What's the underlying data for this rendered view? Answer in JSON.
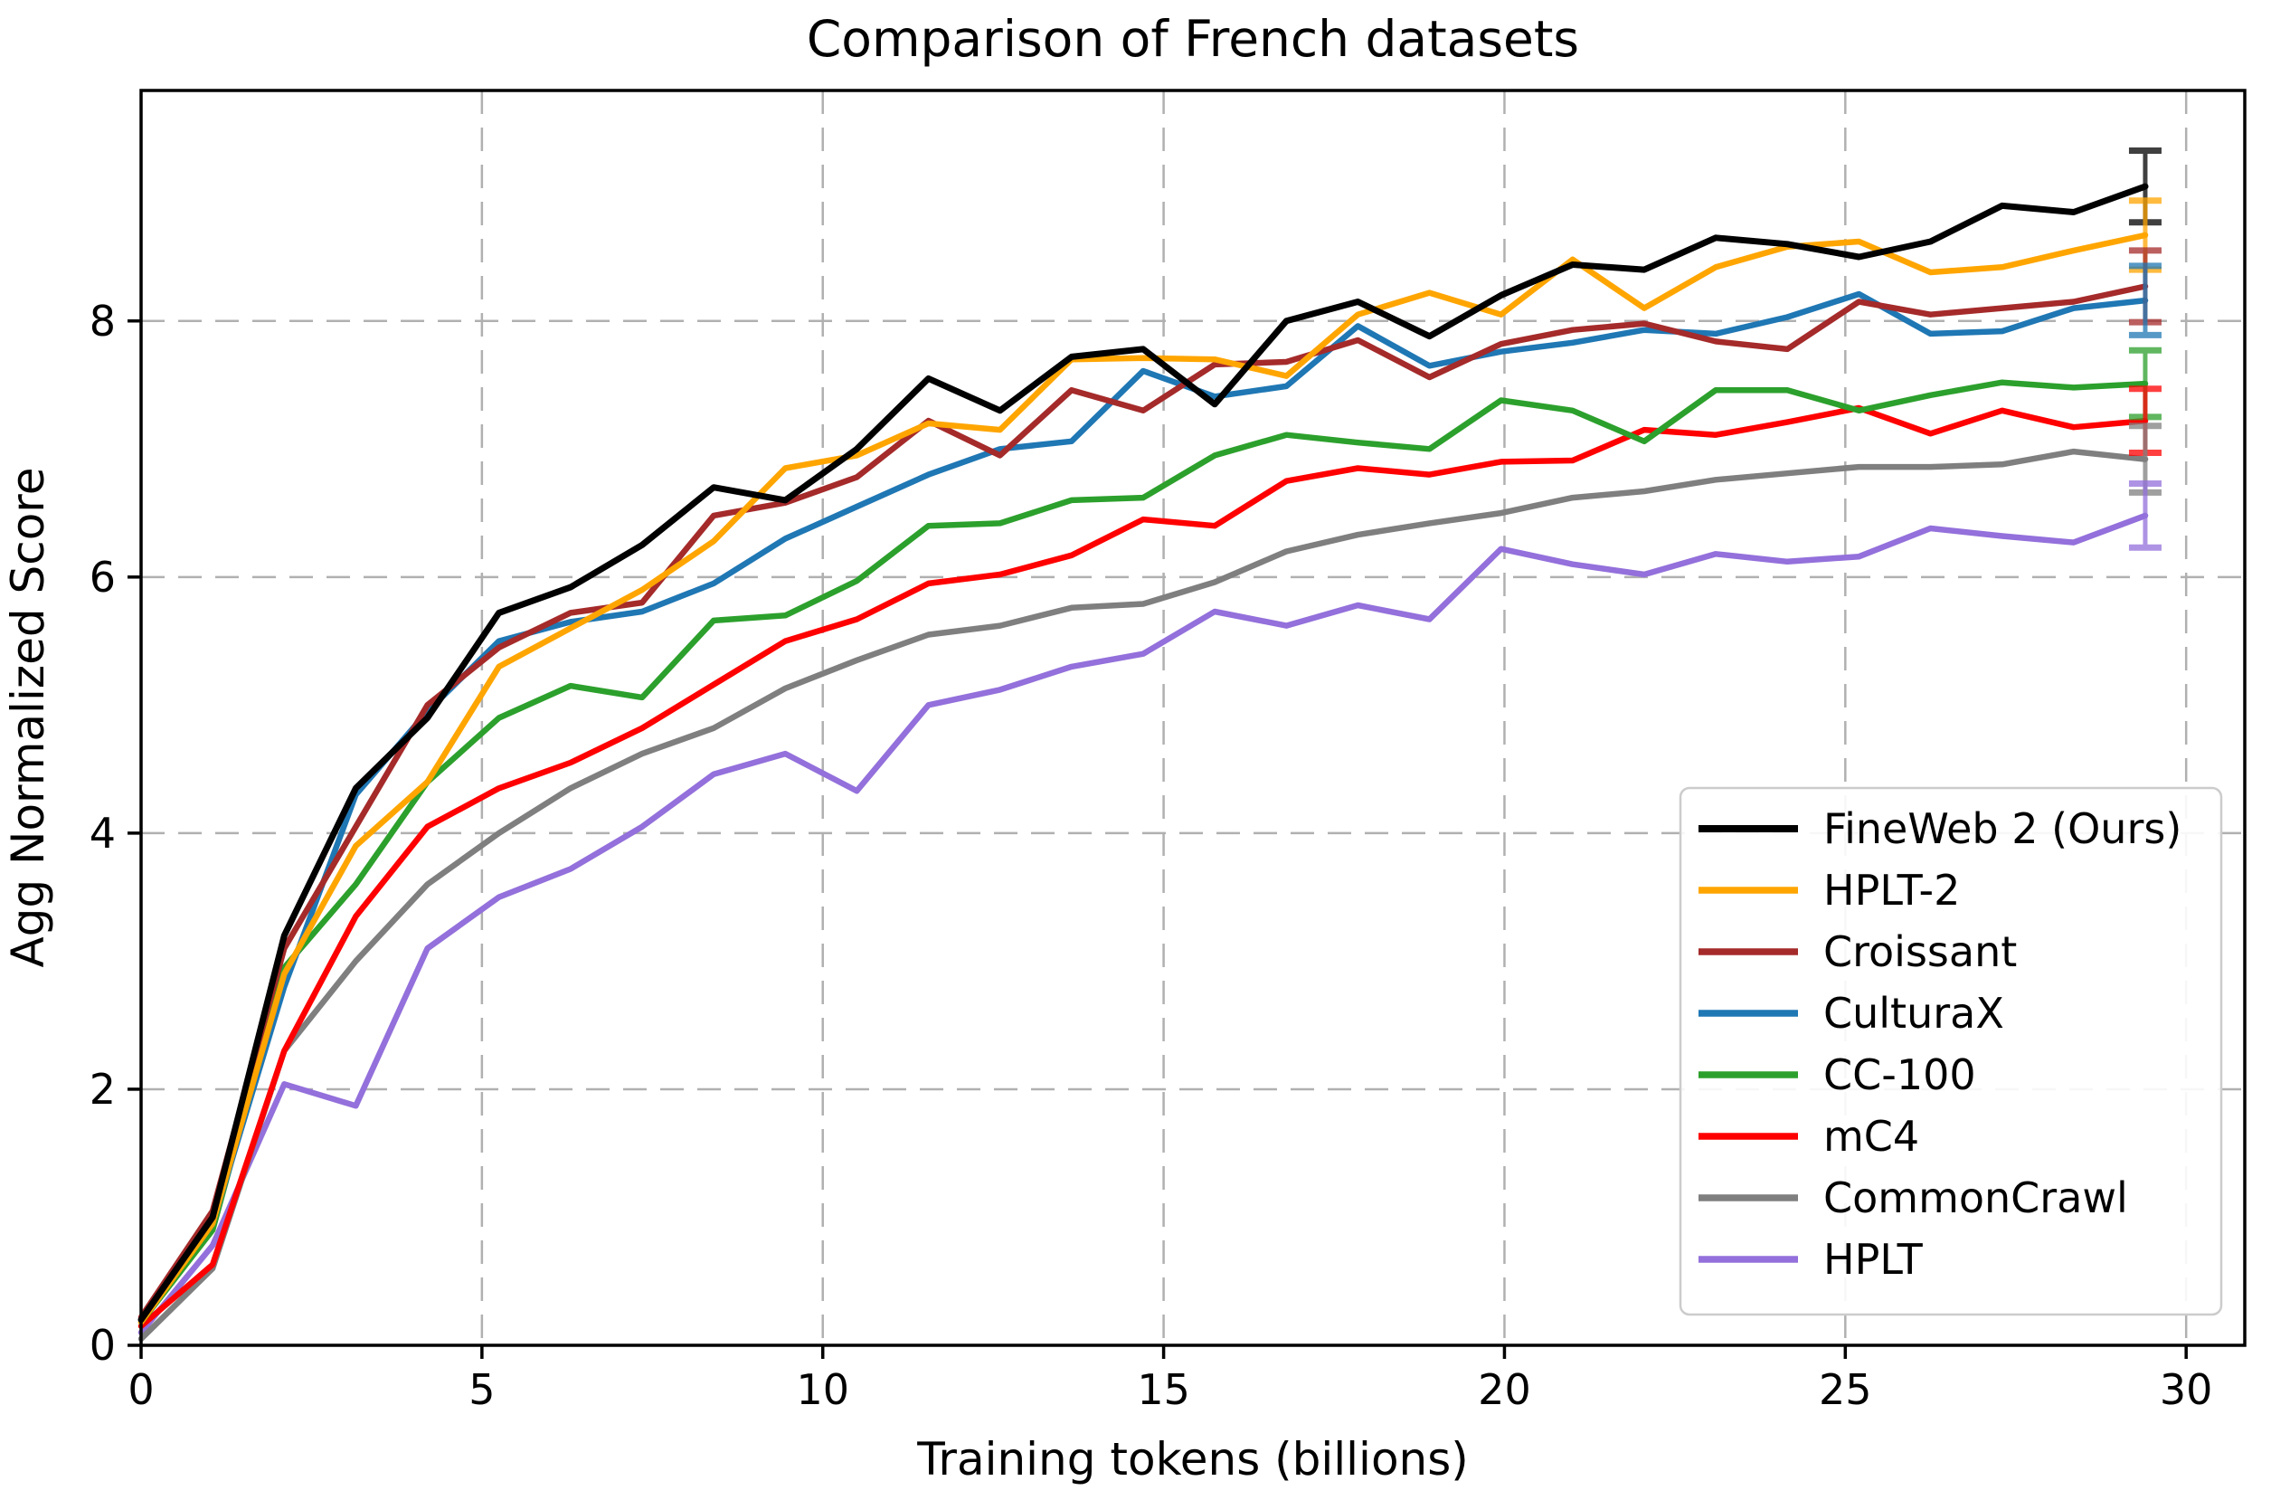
{
  "figure": {
    "title": "Comparison of French datasets",
    "xlabel": "Training tokens (billions)",
    "ylabel": "Agg Normalized Score"
  },
  "chart_data": {
    "type": "line",
    "title": "Comparison of French datasets",
    "xlabel": "Training tokens (billions)",
    "ylabel": "Agg Normalized Score",
    "xlim": [
      0,
      30.86
    ],
    "ylim": [
      0,
      9.8
    ],
    "xticks": [
      0,
      5,
      10,
      15,
      20,
      25,
      30
    ],
    "yticks": [
      0,
      2,
      4,
      6,
      8
    ],
    "grid": true,
    "grid_style": "dashed",
    "grid_color": "#b0b0b0",
    "legend_position": "lower right",
    "error_bar_x": 29.4,
    "x": [
      0,
      1.05,
      2.1,
      3.15,
      4.2,
      5.25,
      6.3,
      7.35,
      8.4,
      9.45,
      10.5,
      11.55,
      12.6,
      13.65,
      14.7,
      15.75,
      16.8,
      17.85,
      18.9,
      19.95,
      21.0,
      22.05,
      23.1,
      24.15,
      25.2,
      26.25,
      27.3,
      28.35,
      29.4
    ],
    "series": [
      {
        "name": "FineWeb 2 (Ours)",
        "color": "#000000",
        "linewidth": 7,
        "values": [
          0.2,
          1.0,
          3.2,
          4.35,
          4.9,
          5.72,
          5.92,
          6.25,
          6.7,
          6.6,
          7.0,
          7.55,
          7.3,
          7.72,
          7.78,
          7.35,
          8.0,
          8.15,
          7.88,
          8.2,
          8.44,
          8.4,
          8.65,
          8.6,
          8.5,
          8.62,
          8.9,
          8.85,
          9.05
        ],
        "final_error": 0.28
      },
      {
        "name": "HPLT-2",
        "color": "#FFA500",
        "linewidth": 6.5,
        "values": [
          0.18,
          0.95,
          2.9,
          3.9,
          4.4,
          5.3,
          5.6,
          5.9,
          6.28,
          6.85,
          6.95,
          7.2,
          7.15,
          7.7,
          7.71,
          7.7,
          7.57,
          8.05,
          8.22,
          8.05,
          8.48,
          8.1,
          8.42,
          8.58,
          8.62,
          8.38,
          8.42,
          8.55,
          8.67
        ],
        "final_error": 0.27
      },
      {
        "name": "Croissant",
        "color": "#A52A2A",
        "linewidth": 6.5,
        "values": [
          0.22,
          1.05,
          3.1,
          4.05,
          5.0,
          5.45,
          5.72,
          5.8,
          6.48,
          6.58,
          6.78,
          7.22,
          6.95,
          7.46,
          7.3,
          7.66,
          7.68,
          7.85,
          7.56,
          7.82,
          7.93,
          7.98,
          7.84,
          7.78,
          8.15,
          8.05,
          8.1,
          8.15,
          8.27
        ],
        "final_error": 0.28
      },
      {
        "name": "CulturaX",
        "color": "#1F77B4",
        "linewidth": 6.5,
        "values": [
          0.2,
          0.95,
          2.8,
          4.3,
          4.95,
          5.5,
          5.65,
          5.73,
          5.95,
          6.3,
          6.55,
          6.8,
          7.0,
          7.06,
          7.61,
          7.41,
          7.49,
          7.96,
          7.65,
          7.76,
          7.83,
          7.93,
          7.9,
          8.03,
          8.21,
          7.9,
          7.92,
          8.1,
          8.16
        ],
        "final_error": 0.27
      },
      {
        "name": "CC-100",
        "color": "#2CA02C",
        "linewidth": 6.5,
        "values": [
          0.18,
          0.9,
          2.95,
          3.6,
          4.4,
          4.9,
          5.15,
          5.06,
          5.66,
          5.7,
          5.97,
          6.4,
          6.42,
          6.6,
          6.62,
          6.95,
          7.11,
          7.05,
          7.0,
          7.38,
          7.3,
          7.06,
          7.46,
          7.46,
          7.3,
          7.42,
          7.52,
          7.48,
          7.51
        ],
        "final_error": 0.26
      },
      {
        "name": "mC4",
        "color": "#FF0000",
        "linewidth": 6.5,
        "values": [
          0.15,
          0.63,
          2.3,
          3.35,
          4.05,
          4.35,
          4.55,
          4.82,
          5.16,
          5.5,
          5.67,
          5.95,
          6.02,
          6.17,
          6.45,
          6.4,
          6.75,
          6.85,
          6.8,
          6.9,
          6.91,
          7.15,
          7.11,
          7.21,
          7.32,
          7.12,
          7.3,
          7.17,
          7.22
        ],
        "final_error": 0.25
      },
      {
        "name": "CommonCrawl",
        "color": "#7F7F7F",
        "linewidth": 6.5,
        "values": [
          0.05,
          0.6,
          2.3,
          3.0,
          3.6,
          4.0,
          4.35,
          4.62,
          4.82,
          5.13,
          5.35,
          5.55,
          5.62,
          5.76,
          5.79,
          5.96,
          6.2,
          6.33,
          6.42,
          6.5,
          6.62,
          6.67,
          6.76,
          6.81,
          6.86,
          6.86,
          6.88,
          6.98,
          6.92
        ],
        "final_error": 0.26
      },
      {
        "name": "HPLT",
        "color": "#9370DB",
        "linewidth": 6.5,
        "values": [
          0.1,
          0.78,
          2.04,
          1.87,
          3.1,
          3.5,
          3.72,
          4.05,
          4.46,
          4.62,
          4.33,
          5.0,
          5.12,
          5.3,
          5.4,
          5.73,
          5.62,
          5.78,
          5.67,
          6.22,
          6.1,
          6.02,
          6.18,
          6.12,
          6.16,
          6.38,
          6.32,
          6.27,
          6.48
        ],
        "final_error": 0.25
      }
    ]
  }
}
